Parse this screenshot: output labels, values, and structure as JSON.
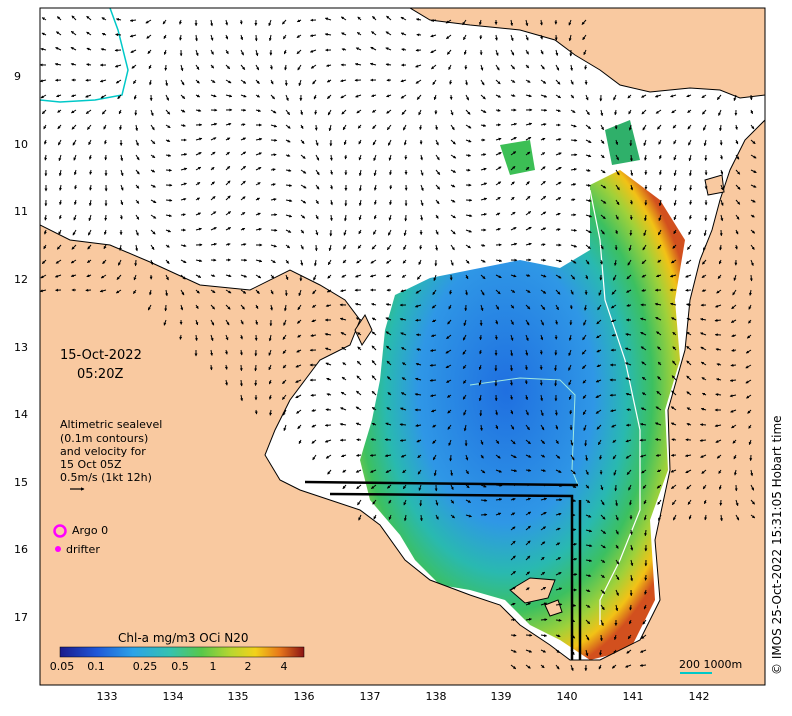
{
  "map": {
    "date": "15-Oct-2022",
    "time": "05:20Z",
    "lat_ticks": [
      "9",
      "10",
      "11",
      "12",
      "13",
      "14",
      "15",
      "16",
      "17"
    ],
    "lon_ticks": [
      "133",
      "134",
      "135",
      "136",
      "137",
      "138",
      "139",
      "140",
      "141",
      "142"
    ],
    "legend_lines": [
      "Altimetric sealevel",
      "(0.1m contours)",
      "and velocity for",
      "15 Oct 05Z",
      "0.5m/s (1kt 12h)"
    ],
    "argo_label": "Argo 0",
    "drifter_label": "drifter",
    "colorbar_title": "Chl-a mg/m3 OCi N20",
    "colorbar_ticks": [
      "0.05",
      "0.1",
      "0.25",
      "0.5",
      "1",
      "2",
      "4"
    ],
    "scale_label": "200  1000m",
    "credit": "© IMOS 25-Oct-2022 15:31:05 Hobart time",
    "colors": {
      "land": "#f9c9a0",
      "coast": "#000000",
      "low_chl": "#2a7fe0",
      "high_chl": "#c8391c",
      "argo": "#ff00ff",
      "isobath_200": "#00c8c8"
    }
  }
}
